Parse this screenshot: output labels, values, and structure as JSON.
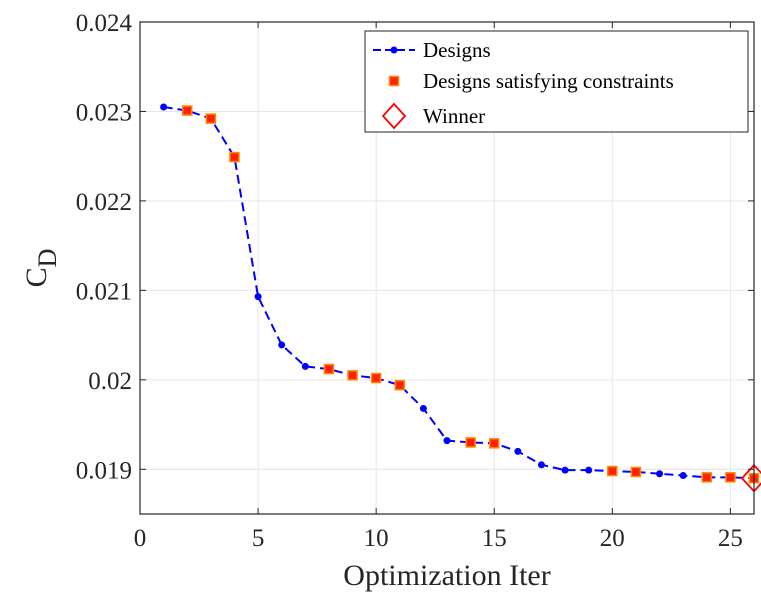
{
  "chart_data": {
    "type": "line",
    "xlabel": "Optimization Iter",
    "ylabel_main": "C",
    "ylabel_sub": "D",
    "xlim": [
      0,
      26
    ],
    "ylim": [
      0.0185,
      0.024
    ],
    "xticks": [
      0,
      5,
      10,
      15,
      20,
      25
    ],
    "xtick_labels": [
      "0",
      "5",
      "10",
      "15",
      "20",
      "25"
    ],
    "yticks": [
      0.019,
      0.02,
      0.021,
      0.022,
      0.023,
      0.024
    ],
    "ytick_labels": [
      "0.019",
      "0.02",
      "0.021",
      "0.022",
      "0.023",
      "0.024"
    ],
    "grid": true,
    "legend_position": "top-right",
    "series": [
      {
        "name": "Designs",
        "color": "#0000ff",
        "line_style": "dashed",
        "marker": "circle",
        "x": [
          1,
          2,
          3,
          4,
          5,
          6,
          7,
          8,
          9,
          10,
          11,
          12,
          13,
          14,
          15,
          16,
          17,
          18,
          19,
          20,
          21,
          22,
          23,
          24,
          25,
          26
        ],
        "y": [
          0.02305,
          0.02301,
          0.02292,
          0.02249,
          0.02093,
          0.02039,
          0.02015,
          0.02012,
          0.02005,
          0.02002,
          0.01994,
          0.01968,
          0.01932,
          0.0193,
          0.01929,
          0.0192,
          0.01905,
          0.01899,
          0.01899,
          0.01898,
          0.01897,
          0.01895,
          0.01893,
          0.01891,
          0.01891,
          0.0189
        ]
      },
      {
        "name": "Designs satisfying constraints",
        "color": "#ff2200",
        "edge_color": "#ff8800",
        "marker": "square",
        "x": [
          2,
          3,
          4,
          8,
          9,
          10,
          11,
          14,
          15,
          20,
          21,
          24,
          25,
          26
        ],
        "y": [
          0.02301,
          0.02292,
          0.02249,
          0.02012,
          0.02005,
          0.02002,
          0.01994,
          0.0193,
          0.01929,
          0.01898,
          0.01897,
          0.01891,
          0.01891,
          0.0189
        ]
      },
      {
        "name": "Winner",
        "color": "#ff0000",
        "marker": "diamond",
        "x": [
          26
        ],
        "y": [
          0.0189
        ]
      }
    ]
  }
}
